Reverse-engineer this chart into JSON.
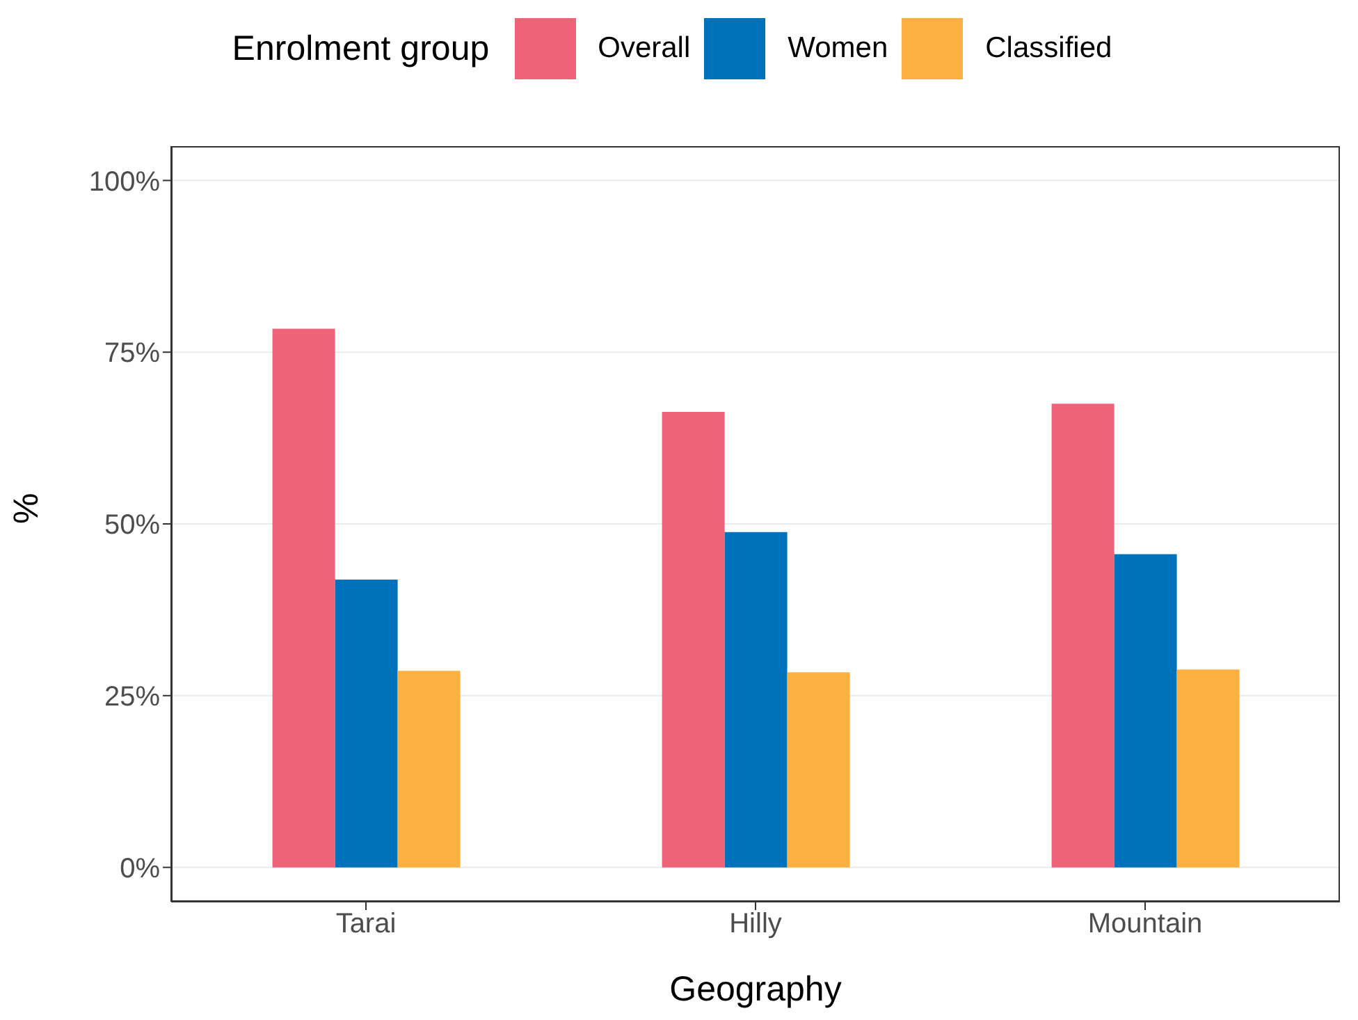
{
  "chart_data": {
    "type": "bar",
    "xlabel": "Geography",
    "ylabel": "%",
    "legend_title": "Enrolment group",
    "legend": "top",
    "categories": [
      "Tarai",
      "Hilly",
      "Mountain"
    ],
    "series": [
      {
        "name": "Overall",
        "color": "#f06277",
        "values": [
          78.4,
          66.3,
          67.5
        ]
      },
      {
        "name": "Women",
        "color": "#0072bc",
        "values": [
          41.9,
          48.8,
          45.6
        ]
      },
      {
        "name": "Classified",
        "color": "#fbb040",
        "values": [
          28.6,
          28.4,
          28.8
        ]
      }
    ],
    "ylim": [
      -5,
      105
    ],
    "yticks": [
      {
        "value": 0,
        "label": "0%"
      },
      {
        "value": 25,
        "label": "25%"
      },
      {
        "value": 50,
        "label": "50%"
      },
      {
        "value": 75,
        "label": "75%"
      },
      {
        "value": 100,
        "label": "100%"
      }
    ],
    "grid": "y"
  }
}
